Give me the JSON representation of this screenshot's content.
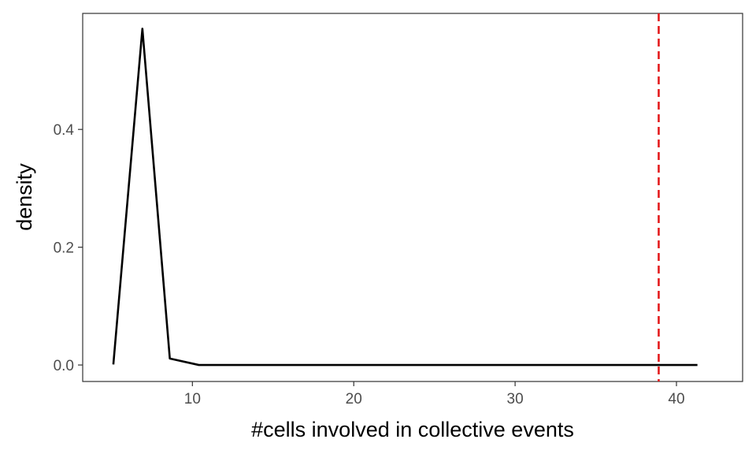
{
  "chart_data": {
    "type": "line",
    "title": "",
    "xlabel": "#cells involved in collective events",
    "ylabel": "density",
    "xlim": [
      3.2,
      44.1
    ],
    "ylim": [
      -0.028,
      0.597
    ],
    "x_ticks": [
      10,
      20,
      30,
      40
    ],
    "y_ticks": [
      0.0,
      0.2,
      0.4
    ],
    "x_tick_labels": [
      "10",
      "20",
      "30",
      "40"
    ],
    "y_tick_labels": [
      "0.0",
      "0.2",
      "0.4"
    ],
    "grid": false,
    "legend": "none",
    "series": [
      {
        "color": "#000000",
        "x": [
          5.1,
          6.9,
          8.6,
          10.4,
          41.3
        ],
        "y": [
          0.001,
          0.571,
          0.011,
          0.0,
          0.0
        ]
      }
    ],
    "vline": {
      "x": 38.9,
      "color": "#e41a1c",
      "style": "dashed"
    }
  }
}
